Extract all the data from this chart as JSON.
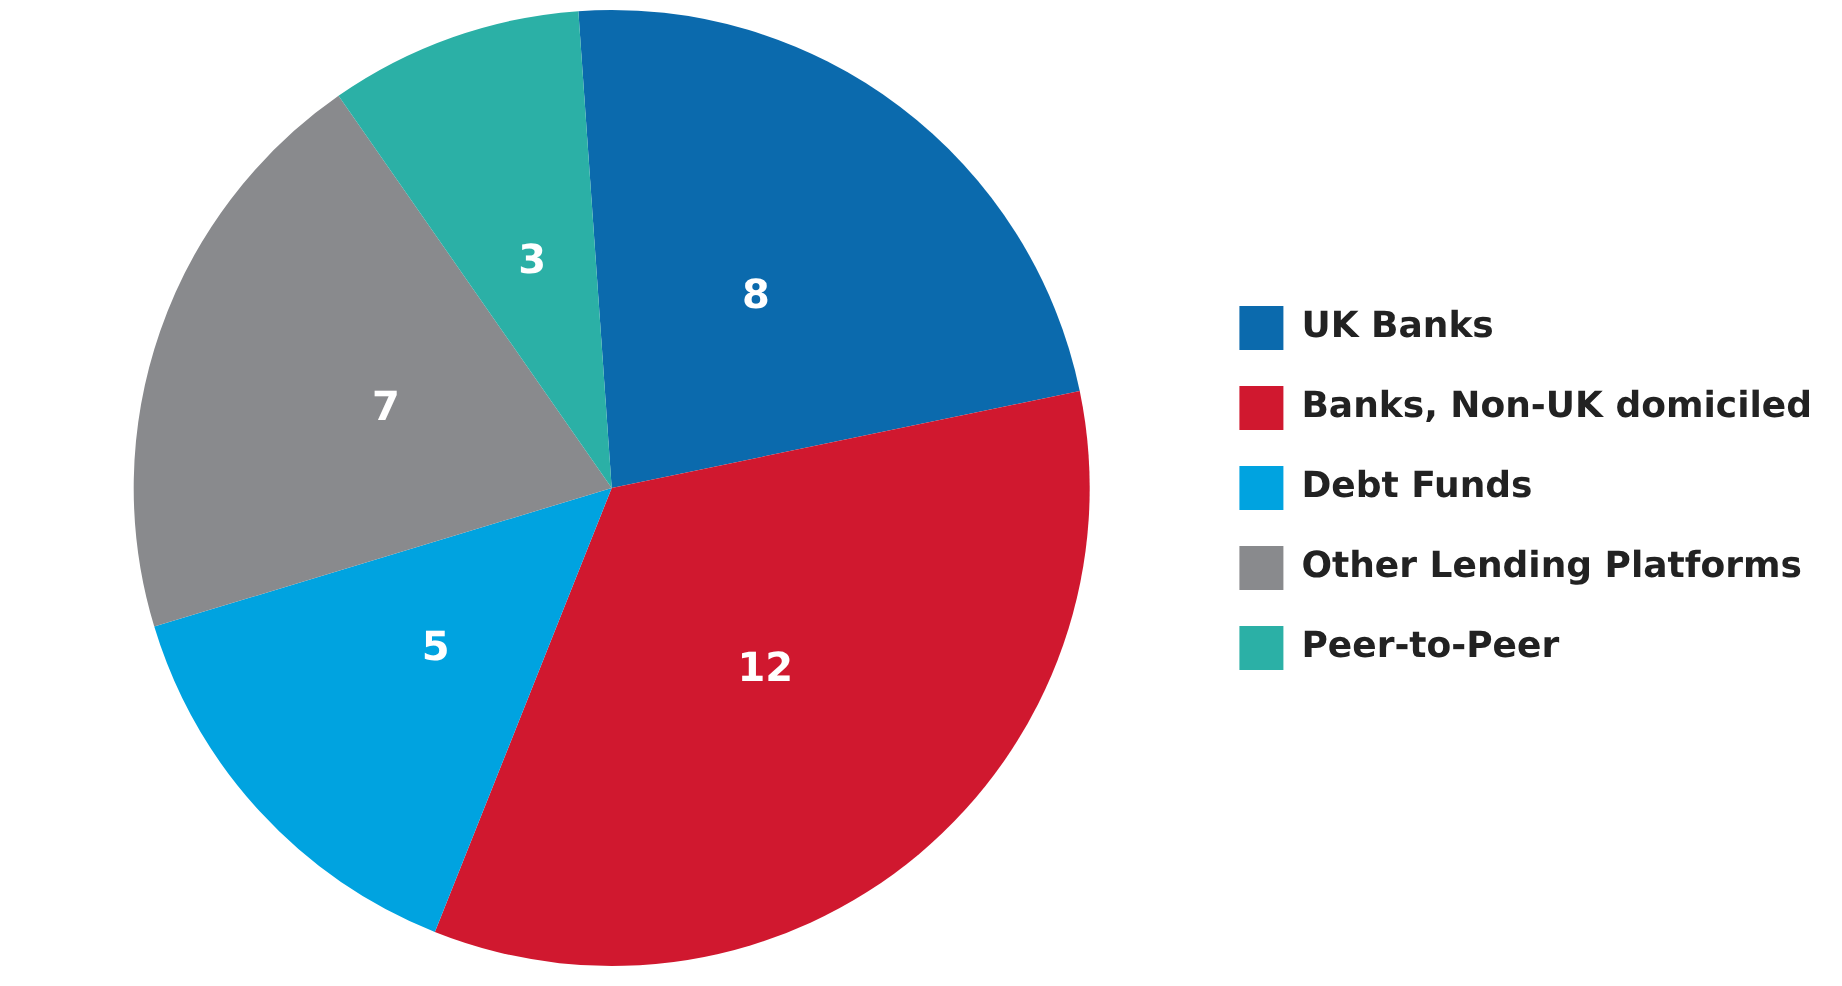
{
  "chart_data": {
    "type": "pie",
    "categories": [
      "UK Banks",
      "Banks, Non-UK domiciled",
      "Debt Funds",
      "Other Lending Platforms",
      "Peer-to-Peer"
    ],
    "values": [
      8,
      12,
      5,
      7,
      3
    ],
    "colors": [
      "#0b6aad",
      "#d0182f",
      "#00a3e0",
      "#898a8d",
      "#2bb0a6"
    ],
    "data_labels": true,
    "legend": "right"
  }
}
